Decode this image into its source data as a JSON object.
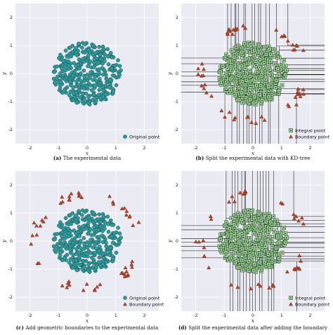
{
  "chart_data": [
    {
      "id": "a",
      "type": "scatter",
      "letter": "(a)",
      "caption": "The experimental data",
      "xlabel": "x",
      "ylabel": "y",
      "xlim": [
        -2.5,
        2.5
      ],
      "ylim": [
        -2.5,
        2.5
      ],
      "xticks": [
        "-2",
        "-1",
        "0",
        "1",
        "2"
      ],
      "yticks": [
        "-2",
        "-1",
        "0",
        "1",
        "2"
      ],
      "grid": true,
      "series": [
        {
          "name": "Original point",
          "marker": "circle",
          "color": "#2e9a9a",
          "shape": "disk",
          "radius": 1.2,
          "n": 380
        }
      ],
      "kd_split": false
    },
    {
      "id": "b",
      "type": "scatter",
      "letter": "(b)",
      "caption": "Split the experimental data with KD-tree",
      "xlabel": "x",
      "ylabel": "y",
      "xlim": [
        -2.5,
        2.5
      ],
      "ylim": [
        -2.5,
        2.5
      ],
      "xticks": [
        "-2",
        "-1",
        "0",
        "1",
        "2"
      ],
      "yticks": [
        "-2",
        "-1",
        "0",
        "1",
        "2"
      ],
      "grid": true,
      "series": [
        {
          "name": "Integral point",
          "marker": "circle",
          "color": "#a8d9a0",
          "shape": "disk",
          "radius": 1.2,
          "n": 380
        },
        {
          "name": "Boundary point",
          "marker": "triangle",
          "color": "#b5462a",
          "shape": "partial-ring",
          "radius": 1.8,
          "n": 55
        }
      ],
      "kd_split": true
    },
    {
      "id": "c",
      "type": "scatter",
      "letter": "(c)",
      "caption": "Add geometric boundaries to the experimental data",
      "xlabel": "x",
      "ylabel": "y",
      "xlim": [
        -2.5,
        2.5
      ],
      "ylim": [
        -2.5,
        2.5
      ],
      "xticks": [
        "-2",
        "-1",
        "0",
        "1",
        "2"
      ],
      "yticks": [
        "-2",
        "-1",
        "0",
        "1",
        "2"
      ],
      "grid": true,
      "series": [
        {
          "name": "Original point",
          "marker": "circle",
          "color": "#2e9a9a",
          "shape": "disk",
          "radius": 1.2,
          "n": 380
        },
        {
          "name": "Boundary point",
          "marker": "triangle",
          "color": "#b5462a",
          "shape": "partial-ring",
          "radius": 1.8,
          "n": 55
        }
      ],
      "kd_split": false
    },
    {
      "id": "d",
      "type": "scatter",
      "letter": "(d)",
      "caption": "Split the experimental data after adding the boundary",
      "xlabel": "x",
      "ylabel": "y",
      "xlim": [
        -2.5,
        2.5
      ],
      "ylim": [
        -2.5,
        2.5
      ],
      "xticks": [
        "-2",
        "-1",
        "0",
        "1",
        "2"
      ],
      "yticks": [
        "-2",
        "-1",
        "0",
        "1",
        "2"
      ],
      "grid": true,
      "series": [
        {
          "name": "Integral point",
          "marker": "circle",
          "color": "#a8d9a0",
          "shape": "disk",
          "radius": 1.2,
          "n": 380
        },
        {
          "name": "Boundary point",
          "marker": "triangle",
          "color": "#b5462a",
          "shape": "partial-ring",
          "radius": 1.8,
          "n": 40
        }
      ],
      "kd_split": true
    }
  ]
}
